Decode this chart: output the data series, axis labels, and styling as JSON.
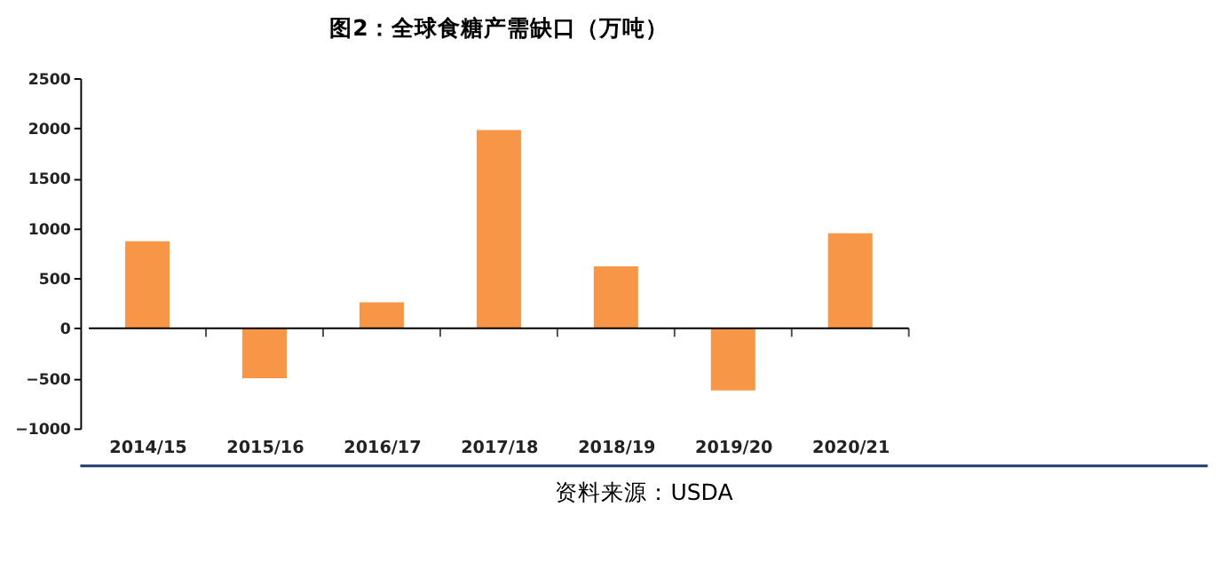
{
  "chart_data": {
    "type": "bar",
    "title": "图2：全球食糖产需缺口（万吨）",
    "categories": [
      "2014/15",
      "2015/16",
      "2016/17",
      "2017/18",
      "2018/19",
      "2019/20",
      "2020/21"
    ],
    "values": [
      870,
      -500,
      260,
      1980,
      620,
      -620,
      950
    ],
    "color": "#f79646",
    "ylim": [
      -1000,
      2500
    ],
    "yticks": [
      -1000,
      -500,
      0,
      500,
      1000,
      1500,
      2000,
      2500
    ],
    "annotations": [
      "资料来源：USDA"
    ]
  }
}
